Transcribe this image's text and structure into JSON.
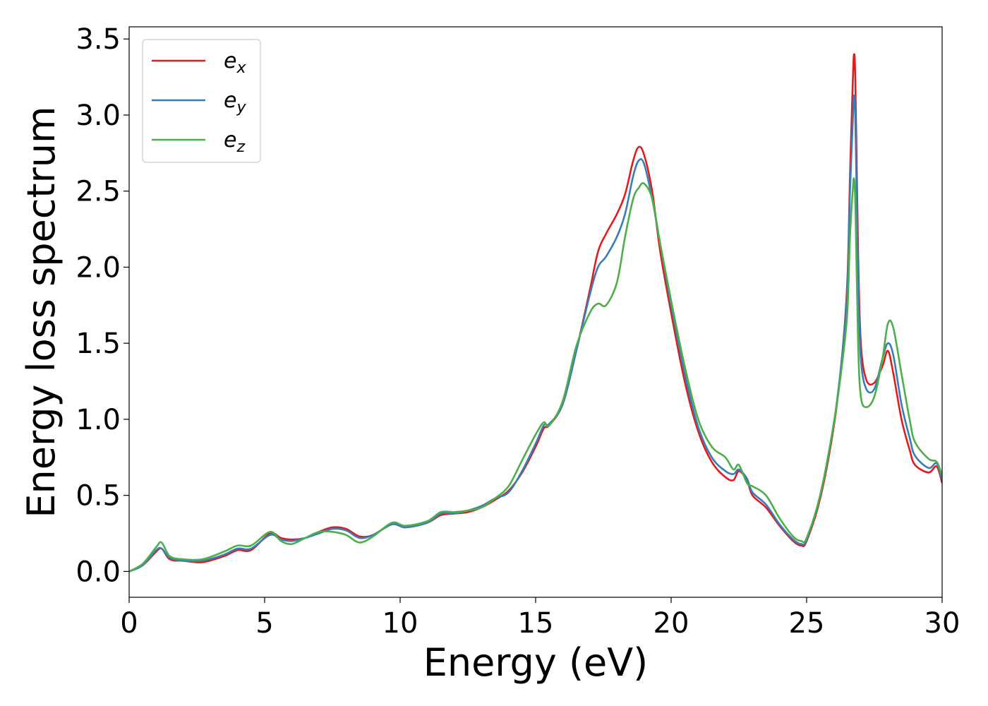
{
  "chart_data": {
    "type": "line",
    "xlabel": "Energy (eV)",
    "ylabel": "Energy loss spectrum",
    "xlim": [
      0,
      30
    ],
    "ylim": [
      -0.17,
      3.58
    ],
    "xticks": [
      0,
      5,
      10,
      15,
      20,
      25,
      30
    ],
    "xtick_labels": [
      "0",
      "5",
      "10",
      "15",
      "20",
      "25",
      "30"
    ],
    "yticks": [
      0.0,
      0.5,
      1.0,
      1.5,
      2.0,
      2.5,
      3.0,
      3.5
    ],
    "ytick_labels": [
      "0.0",
      "0.5",
      "1.0",
      "1.5",
      "2.0",
      "2.5",
      "3.0",
      "3.5"
    ],
    "grid": false,
    "legend_position": "top-left",
    "series": [
      {
        "name": "e",
        "subscript": "x",
        "color": "#e41a1c",
        "x": [
          0,
          0.5,
          1.0,
          1.2,
          1.5,
          2.0,
          2.7,
          3.5,
          4.0,
          4.5,
          5.2,
          5.6,
          6.0,
          6.5,
          7.0,
          7.5,
          8.0,
          8.5,
          9.0,
          9.7,
          10.2,
          11.0,
          11.5,
          12.0,
          12.5,
          13.0,
          13.5,
          14.0,
          14.5,
          15.0,
          15.3,
          15.5,
          16.0,
          16.5,
          17.0,
          17.3,
          17.6,
          18.0,
          18.3,
          18.6,
          18.8,
          19.0,
          19.3,
          19.6,
          20.0,
          20.5,
          21.0,
          21.5,
          22.0,
          22.3,
          22.5,
          22.8,
          23.0,
          23.5,
          24.0,
          24.5,
          24.8,
          25.0,
          25.5,
          26.0,
          26.3,
          26.5,
          26.6,
          26.7,
          26.75,
          26.8,
          26.9,
          27.0,
          27.2,
          27.5,
          27.8,
          28.0,
          28.2,
          28.5,
          28.8,
          29.0,
          29.5,
          29.8,
          30.0
        ],
        "y": [
          0.0,
          0.04,
          0.13,
          0.15,
          0.08,
          0.07,
          0.06,
          0.1,
          0.14,
          0.14,
          0.25,
          0.22,
          0.21,
          0.22,
          0.26,
          0.29,
          0.28,
          0.23,
          0.24,
          0.31,
          0.29,
          0.32,
          0.37,
          0.38,
          0.39,
          0.42,
          0.47,
          0.53,
          0.65,
          0.82,
          0.94,
          0.96,
          1.1,
          1.45,
          1.85,
          2.1,
          2.22,
          2.35,
          2.48,
          2.7,
          2.79,
          2.74,
          2.5,
          2.1,
          1.7,
          1.25,
          0.92,
          0.72,
          0.62,
          0.6,
          0.66,
          0.6,
          0.5,
          0.42,
          0.3,
          0.2,
          0.17,
          0.2,
          0.48,
          0.95,
          1.4,
          1.9,
          2.6,
          3.2,
          3.4,
          3.2,
          2.1,
          1.5,
          1.26,
          1.24,
          1.35,
          1.45,
          1.3,
          1.0,
          0.8,
          0.7,
          0.65,
          0.69,
          0.58
        ]
      },
      {
        "name": "e",
        "subscript": "y",
        "color": "#377eb8",
        "x": [
          0,
          0.5,
          1.0,
          1.2,
          1.5,
          2.0,
          2.7,
          3.5,
          4.0,
          4.5,
          5.2,
          5.6,
          6.0,
          6.5,
          7.0,
          7.5,
          8.0,
          8.5,
          9.0,
          9.7,
          10.2,
          11.0,
          11.5,
          12.0,
          12.5,
          13.0,
          13.5,
          14.0,
          14.5,
          15.0,
          15.3,
          15.5,
          16.0,
          16.5,
          17.0,
          17.3,
          17.6,
          18.0,
          18.3,
          18.6,
          18.8,
          19.0,
          19.3,
          19.6,
          20.0,
          20.5,
          21.0,
          21.5,
          22.0,
          22.3,
          22.5,
          22.8,
          23.0,
          23.5,
          24.0,
          24.5,
          24.8,
          25.0,
          25.5,
          26.0,
          26.3,
          26.5,
          26.6,
          26.7,
          26.75,
          26.8,
          26.9,
          27.0,
          27.2,
          27.5,
          27.8,
          28.0,
          28.2,
          28.5,
          28.8,
          29.0,
          29.5,
          29.8,
          30.0
        ],
        "y": [
          0.0,
          0.04,
          0.14,
          0.15,
          0.09,
          0.07,
          0.07,
          0.11,
          0.15,
          0.15,
          0.24,
          0.21,
          0.2,
          0.22,
          0.25,
          0.28,
          0.27,
          0.22,
          0.24,
          0.31,
          0.29,
          0.32,
          0.38,
          0.38,
          0.4,
          0.43,
          0.48,
          0.52,
          0.66,
          0.84,
          0.96,
          0.97,
          1.1,
          1.45,
          1.82,
          2.0,
          2.07,
          2.2,
          2.35,
          2.6,
          2.7,
          2.68,
          2.45,
          2.15,
          1.75,
          1.3,
          0.95,
          0.75,
          0.66,
          0.64,
          0.67,
          0.61,
          0.52,
          0.44,
          0.31,
          0.21,
          0.18,
          0.21,
          0.5,
          0.97,
          1.4,
          1.85,
          2.5,
          2.95,
          3.13,
          2.95,
          1.95,
          1.4,
          1.2,
          1.2,
          1.4,
          1.5,
          1.42,
          1.1,
          0.88,
          0.76,
          0.68,
          0.71,
          0.6
        ]
      },
      {
        "name": "e",
        "subscript": "z",
        "color": "#4daf4a",
        "x": [
          0,
          0.5,
          1.0,
          1.2,
          1.5,
          2.0,
          2.7,
          3.5,
          4.0,
          4.5,
          5.2,
          5.6,
          6.0,
          6.5,
          7.0,
          7.5,
          8.0,
          8.5,
          9.0,
          9.7,
          10.2,
          11.0,
          11.5,
          12.0,
          12.5,
          13.0,
          13.5,
          14.0,
          14.5,
          15.0,
          15.3,
          15.5,
          16.0,
          16.5,
          17.0,
          17.3,
          17.6,
          18.0,
          18.3,
          18.6,
          18.8,
          19.0,
          19.3,
          19.6,
          20.0,
          20.5,
          21.0,
          21.5,
          22.0,
          22.3,
          22.5,
          22.8,
          23.0,
          23.5,
          24.0,
          24.5,
          24.8,
          25.0,
          25.5,
          26.0,
          26.3,
          26.5,
          26.6,
          26.7,
          26.75,
          26.8,
          26.9,
          27.0,
          27.2,
          27.5,
          27.8,
          28.0,
          28.2,
          28.5,
          28.8,
          29.0,
          29.5,
          29.8,
          30.0
        ],
        "y": [
          0.0,
          0.05,
          0.16,
          0.19,
          0.1,
          0.08,
          0.08,
          0.13,
          0.17,
          0.17,
          0.26,
          0.2,
          0.18,
          0.22,
          0.26,
          0.26,
          0.24,
          0.19,
          0.23,
          0.32,
          0.3,
          0.33,
          0.39,
          0.39,
          0.4,
          0.42,
          0.48,
          0.56,
          0.73,
          0.9,
          0.98,
          0.96,
          1.12,
          1.48,
          1.7,
          1.76,
          1.75,
          1.9,
          2.2,
          2.45,
          2.52,
          2.55,
          2.45,
          2.15,
          1.78,
          1.35,
          1.0,
          0.82,
          0.75,
          0.67,
          0.7,
          0.58,
          0.56,
          0.5,
          0.35,
          0.23,
          0.2,
          0.22,
          0.5,
          0.97,
          1.35,
          1.7,
          2.2,
          2.5,
          2.58,
          2.4,
          1.5,
          1.15,
          1.08,
          1.15,
          1.4,
          1.63,
          1.6,
          1.3,
          1.0,
          0.85,
          0.74,
          0.72,
          0.63
        ]
      }
    ]
  }
}
